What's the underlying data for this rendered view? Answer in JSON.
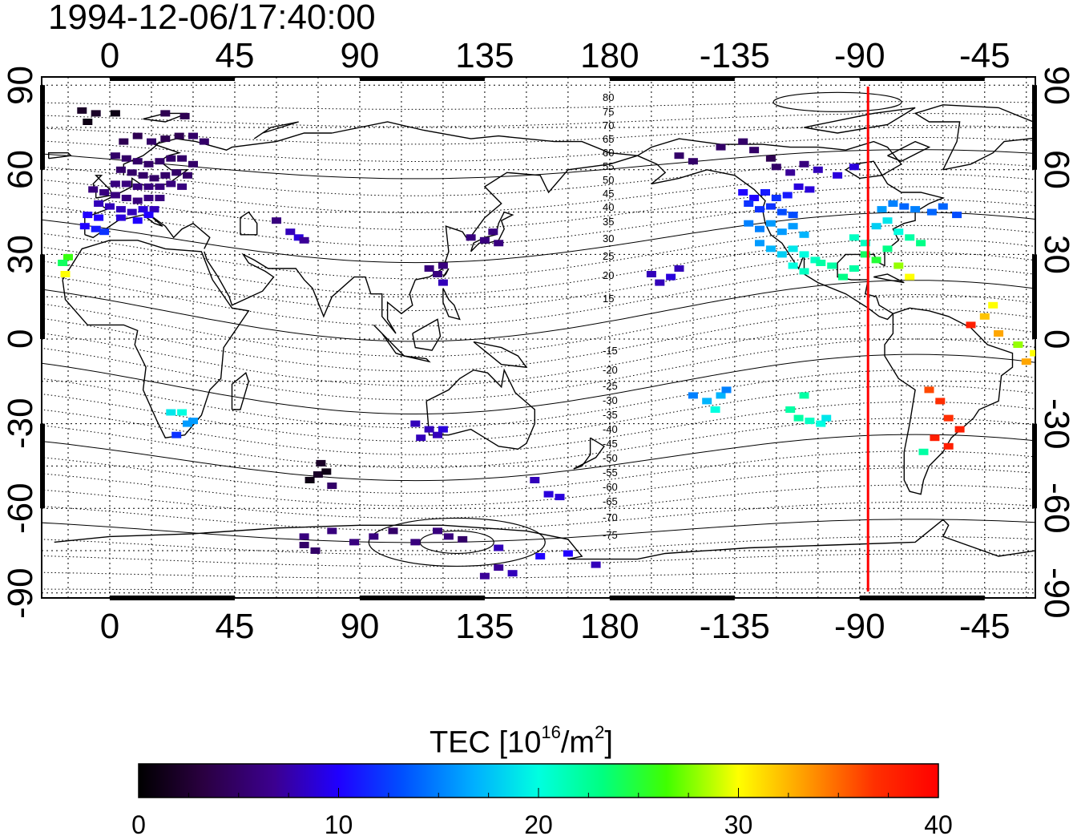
{
  "title": "1994-12-06/17:40:00",
  "map": {
    "projection": "equirectangular",
    "lon_ticks": [
      "0",
      "45",
      "90",
      "135",
      "180",
      "-135",
      "-90",
      "-45"
    ],
    "lat_ticks": [
      "90",
      "60",
      "30",
      "0",
      "-30",
      "-60",
      "-90"
    ],
    "terminator_lon": -87,
    "terminator_color": "#ff0000",
    "contour_labels_north": [
      "80",
      "75",
      "70",
      "65",
      "60",
      "55",
      "50",
      "45",
      "40",
      "35",
      "30",
      "25",
      "20",
      "15"
    ],
    "contour_labels_south": [
      "-15",
      "-20",
      "-25",
      "-30",
      "-35",
      "-40",
      "-45",
      "-50",
      "-55",
      "-60",
      "-65",
      "-70",
      "-75"
    ]
  },
  "colorbar": {
    "title_prefix": "TEC  [10",
    "title_sup1": "16",
    "title_mid": "/m",
    "title_sup2": "2",
    "title_suffix": "]",
    "ticks": [
      "0",
      "10",
      "20",
      "30",
      "40"
    ],
    "min": 0,
    "max": 40
  },
  "chart_data": {
    "type": "scatter",
    "title": "1994-12-06/17:40:00",
    "value_label": "TEC  [10^16/m^2]",
    "color_range": [
      0,
      40
    ],
    "xlim": [
      -20,
      340
    ],
    "ylim": [
      -90,
      90
    ],
    "points": [
      [
        -10,
        81,
        2
      ],
      [
        -5,
        80,
        2
      ],
      [
        -8,
        77,
        1
      ],
      [
        2,
        80,
        1
      ],
      [
        20,
        80,
        4
      ],
      [
        27,
        79,
        4
      ],
      [
        5,
        70,
        4
      ],
      [
        10,
        72,
        4
      ],
      [
        15,
        70,
        5
      ],
      [
        20,
        71,
        4
      ],
      [
        25,
        72,
        4
      ],
      [
        30,
        72,
        5
      ],
      [
        34,
        70,
        5
      ],
      [
        2,
        65,
        5
      ],
      [
        6,
        64,
        5
      ],
      [
        10,
        63,
        5
      ],
      [
        14,
        62,
        5
      ],
      [
        18,
        63,
        5
      ],
      [
        22,
        64,
        5
      ],
      [
        26,
        64,
        5
      ],
      [
        30,
        62,
        5
      ],
      [
        4,
        60,
        5
      ],
      [
        8,
        59,
        5
      ],
      [
        12,
        58,
        5
      ],
      [
        16,
        57,
        5
      ],
      [
        20,
        58,
        5
      ],
      [
        24,
        59,
        5
      ],
      [
        28,
        58,
        5
      ],
      [
        2,
        55,
        6
      ],
      [
        6,
        55,
        6
      ],
      [
        10,
        54,
        6
      ],
      [
        14,
        54,
        6
      ],
      [
        18,
        54,
        6
      ],
      [
        22,
        55,
        6
      ],
      [
        26,
        54,
        6
      ],
      [
        -6,
        53,
        6
      ],
      [
        -2,
        52,
        6
      ],
      [
        2,
        51,
        6
      ],
      [
        6,
        50,
        6
      ],
      [
        10,
        49,
        6
      ],
      [
        14,
        50,
        6
      ],
      [
        18,
        50,
        6
      ],
      [
        -4,
        48,
        8
      ],
      [
        0,
        47,
        8
      ],
      [
        4,
        46,
        8
      ],
      [
        8,
        45,
        8
      ],
      [
        12,
        46,
        9
      ],
      [
        16,
        46,
        8
      ],
      [
        -8,
        44,
        10
      ],
      [
        -4,
        43,
        10
      ],
      [
        4,
        43,
        9
      ],
      [
        10,
        42,
        10
      ],
      [
        14,
        44,
        10
      ],
      [
        -9,
        40,
        10
      ],
      [
        -5,
        39,
        11
      ],
      [
        -2,
        38,
        12
      ],
      [
        -15,
        29,
        26
      ],
      [
        -17,
        27,
        24
      ],
      [
        -16,
        23,
        30
      ],
      [
        22,
        -26,
        19
      ],
      [
        26,
        -26,
        20
      ],
      [
        24,
        -34,
        12
      ],
      [
        28,
        -30,
        16
      ],
      [
        30,
        -29,
        16
      ],
      [
        75,
        -48,
        2
      ],
      [
        78,
        -47,
        1
      ],
      [
        72,
        -50,
        1
      ],
      [
        76,
        -44,
        2
      ],
      [
        80,
        -52,
        5
      ],
      [
        70,
        -70,
        6
      ],
      [
        80,
        -68,
        6
      ],
      [
        88,
        -72,
        6
      ],
      [
        95,
        -70,
        6
      ],
      [
        102,
        -68,
        5
      ],
      [
        110,
        -72,
        6
      ],
      [
        118,
        -68,
        6
      ],
      [
        122,
        -70,
        6
      ],
      [
        127,
        -71,
        5
      ],
      [
        70,
        -73,
        5
      ],
      [
        74,
        -75,
        5
      ],
      [
        140,
        -74,
        8
      ],
      [
        155,
        -77,
        10
      ],
      [
        165,
        -76,
        10
      ],
      [
        175,
        -80,
        8
      ],
      [
        140,
        -81,
        7
      ],
      [
        145,
        -83,
        8
      ],
      [
        135,
        -84,
        7
      ],
      [
        110,
        -30,
        8
      ],
      [
        115,
        -32,
        8
      ],
      [
        118,
        -34,
        8
      ],
      [
        112,
        -35,
        8
      ],
      [
        120,
        -32,
        9
      ],
      [
        153,
        -50,
        8
      ],
      [
        158,
        -55,
        9
      ],
      [
        162,
        -56,
        9
      ],
      [
        60,
        42,
        6
      ],
      [
        65,
        38,
        8
      ],
      [
        68,
        36,
        9
      ],
      [
        70,
        35,
        7
      ],
      [
        115,
        25,
        6
      ],
      [
        118,
        23,
        6
      ],
      [
        120,
        26,
        6
      ],
      [
        120,
        20,
        8
      ],
      [
        130,
        36,
        6
      ],
      [
        135,
        35,
        6
      ],
      [
        140,
        34,
        6
      ],
      [
        138,
        38,
        6
      ],
      [
        195,
        23,
        8
      ],
      [
        198,
        20,
        8
      ],
      [
        202,
        22,
        9
      ],
      [
        205,
        25,
        8
      ],
      [
        210,
        -20,
        15
      ],
      [
        215,
        -22,
        17
      ],
      [
        218,
        -25,
        20
      ],
      [
        220,
        -20,
        17
      ],
      [
        222,
        -18,
        15
      ],
      [
        245,
        -25,
        22
      ],
      [
        248,
        -28,
        22
      ],
      [
        252,
        -29,
        21
      ],
      [
        256,
        -30,
        20
      ],
      [
        258,
        -28,
        19
      ],
      [
        250,
        -20,
        22
      ],
      [
        205,
        65,
        5
      ],
      [
        210,
        63,
        5
      ],
      [
        220,
        68,
        5
      ],
      [
        228,
        70,
        5
      ],
      [
        232,
        67,
        5
      ],
      [
        238,
        64,
        4
      ],
      [
        240,
        61,
        5
      ],
      [
        245,
        59,
        7
      ],
      [
        250,
        62,
        6
      ],
      [
        255,
        60,
        8
      ],
      [
        262,
        58,
        9
      ],
      [
        268,
        61,
        9
      ],
      [
        228,
        52,
        10
      ],
      [
        232,
        50,
        10
      ],
      [
        236,
        52,
        11
      ],
      [
        240,
        50,
        12
      ],
      [
        244,
        51,
        11
      ],
      [
        248,
        54,
        9
      ],
      [
        252,
        53,
        9
      ],
      [
        230,
        48,
        12
      ],
      [
        234,
        46,
        12
      ],
      [
        238,
        47,
        12
      ],
      [
        242,
        45,
        13
      ],
      [
        246,
        44,
        13
      ],
      [
        230,
        41,
        15
      ],
      [
        234,
        39,
        15
      ],
      [
        238,
        41,
        16
      ],
      [
        242,
        38,
        16
      ],
      [
        246,
        40,
        16
      ],
      [
        250,
        37,
        17
      ],
      [
        234,
        34,
        16
      ],
      [
        238,
        32,
        17
      ],
      [
        242,
        30,
        18
      ],
      [
        246,
        32,
        19
      ],
      [
        250,
        30,
        20
      ],
      [
        254,
        28,
        21
      ],
      [
        246,
        26,
        20
      ],
      [
        250,
        24,
        21
      ],
      [
        256,
        27,
        22
      ],
      [
        260,
        26,
        22
      ],
      [
        264,
        22,
        23
      ],
      [
        268,
        25,
        22
      ],
      [
        268,
        36,
        21
      ],
      [
        272,
        34,
        21
      ],
      [
        276,
        40,
        18
      ],
      [
        280,
        42,
        19
      ],
      [
        284,
        38,
        20
      ],
      [
        288,
        36,
        22
      ],
      [
        292,
        34,
        23
      ],
      [
        278,
        46,
        16
      ],
      [
        282,
        48,
        15
      ],
      [
        286,
        47,
        14
      ],
      [
        290,
        46,
        15
      ],
      [
        296,
        45,
        14
      ],
      [
        300,
        47,
        14
      ],
      [
        305,
        44,
        13
      ],
      [
        272,
        30,
        24
      ],
      [
        276,
        28,
        25
      ],
      [
        280,
        32,
        23
      ],
      [
        284,
        26,
        28
      ],
      [
        288,
        22,
        30
      ],
      [
        295,
        -18,
        36
      ],
      [
        299,
        -22,
        37
      ],
      [
        302,
        -28,
        37
      ],
      [
        297,
        -35,
        38
      ],
      [
        302,
        -38,
        38
      ],
      [
        306,
        -32,
        38
      ],
      [
        293,
        -40,
        22
      ],
      [
        310,
        5,
        38
      ],
      [
        315,
        8,
        32
      ],
      [
        318,
        12,
        30
      ],
      [
        320,
        2,
        33
      ],
      [
        327,
        -2,
        28
      ],
      [
        333,
        -5,
        30
      ],
      [
        330,
        -8,
        33
      ]
    ]
  }
}
